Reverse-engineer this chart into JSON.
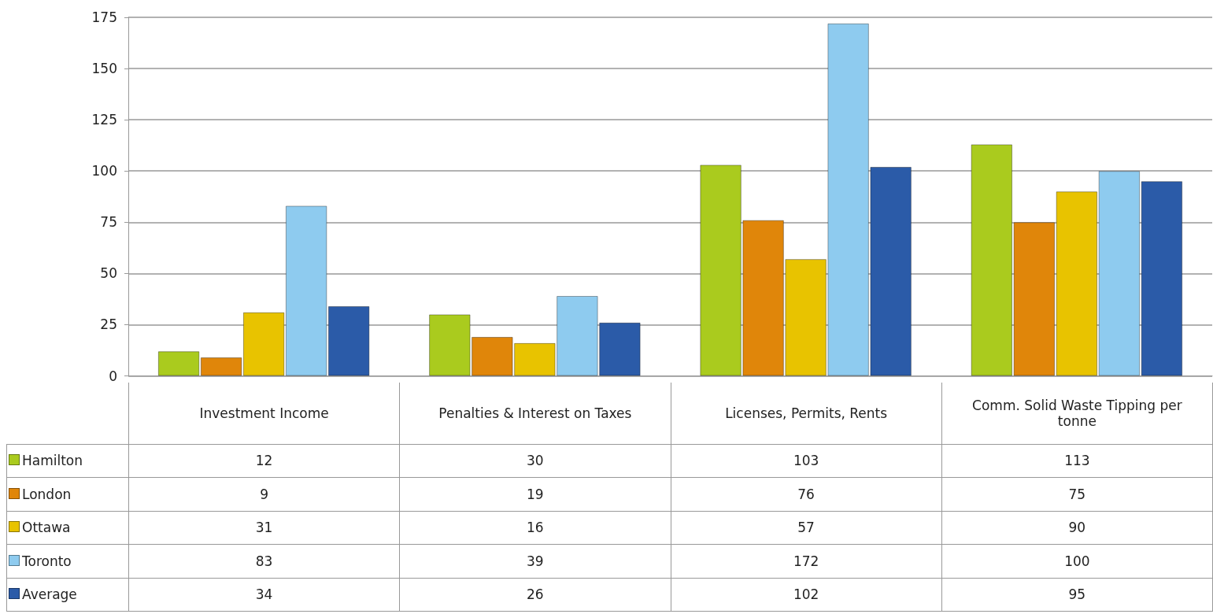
{
  "chart_data": {
    "type": "bar",
    "categories": [
      "Investment Income",
      "Penalties & Interest on Taxes",
      "Licenses, Permits, Rents",
      "Comm. Solid Waste Tipping per tonne"
    ],
    "series": [
      {
        "name": "Hamilton",
        "color": "#aacb1e",
        "values": [
          12,
          30,
          103,
          113
        ]
      },
      {
        "name": "London",
        "color": "#e0860a",
        "values": [
          9,
          19,
          76,
          75
        ]
      },
      {
        "name": "Ottawa",
        "color": "#e8c300",
        "values": [
          31,
          16,
          57,
          90
        ]
      },
      {
        "name": "Toronto",
        "color": "#8ecbef",
        "values": [
          83,
          39,
          172,
          100
        ]
      },
      {
        "name": "Average",
        "color": "#2b5ba8",
        "values": [
          34,
          26,
          102,
          95
        ]
      }
    ],
    "ylim": [
      0,
      175
    ],
    "yticks": [
      0,
      25,
      50,
      75,
      100,
      125,
      150,
      175
    ],
    "grid": "y",
    "legend": "bottom",
    "data_labels": true
  }
}
